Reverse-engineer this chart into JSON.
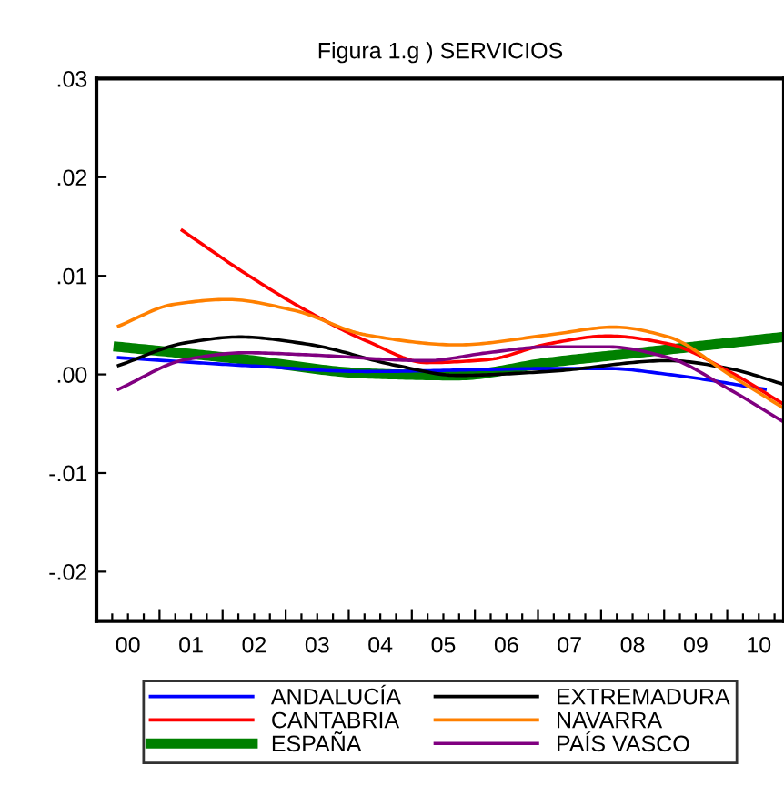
{
  "chart_data": {
    "type": "line",
    "title": "Figura 1.g ) SERVICIOS",
    "xlim": [
      0,
      10.9
    ],
    "xticks": [
      {
        "value": 0.5,
        "label": "00"
      },
      {
        "value": 1.5,
        "label": "01"
      },
      {
        "value": 2.5,
        "label": "02"
      },
      {
        "value": 3.5,
        "label": "03"
      },
      {
        "value": 4.5,
        "label": "04"
      },
      {
        "value": 5.5,
        "label": "05"
      },
      {
        "value": 6.5,
        "label": "06"
      },
      {
        "value": 7.5,
        "label": "07"
      },
      {
        "value": 8.5,
        "label": "08"
      },
      {
        "value": 9.5,
        "label": "09"
      },
      {
        "value": 10.5,
        "label": "10"
      }
    ],
    "ylim": [
      -0.025,
      0.03
    ],
    "yticks": [
      {
        "value": -0.02,
        "label": "-.02"
      },
      {
        "value": -0.01,
        "label": "-.01"
      },
      {
        "value": 0,
        "label": ".00"
      },
      {
        "value": 0.01,
        "label": ".01"
      },
      {
        "value": 0.02,
        "label": ".02"
      },
      {
        "value": 0.03,
        "label": ".03"
      }
    ],
    "grid": false,
    "legend": "bottom",
    "marker": "none",
    "line_style": "solid",
    "series": [
      {
        "name": "ANDALUCÍA",
        "color": "#0000ff",
        "x": [
          0.35,
          2.37,
          4.28,
          6.2,
          7.16,
          8.11,
          9.07,
          10.6
        ],
        "values": [
          0.0017,
          0.0009,
          0.0003,
          0.0005,
          0.0006,
          0.0006,
          0.0,
          -0.0015
        ]
      },
      {
        "name": "EXTREMADURA",
        "color": "#000000",
        "x": [
          0.35,
          1.41,
          2.27,
          3.32,
          4.76,
          5.72,
          7.16,
          9.07,
          10.03,
          10.89
        ],
        "values": [
          0.0009,
          0.0032,
          0.0038,
          0.0031,
          0.0009,
          -0.0001,
          0.0003,
          0.0014,
          0.0006,
          -0.001
        ]
      },
      {
        "name": "CANTABRIA",
        "color": "#ff0000",
        "x": [
          1.36,
          2.37,
          3.32,
          4.28,
          5.24,
          6.2,
          7.16,
          8.11,
          9.07,
          10.03,
          10.89
        ],
        "values": [
          0.0146,
          0.0102,
          0.0065,
          0.0034,
          0.0012,
          0.0015,
          0.0031,
          0.0039,
          0.0031,
          0.0003,
          -0.003
        ]
      },
      {
        "name": "NAVARRA",
        "color": "#ff8000",
        "x": [
          0.35,
          1.22,
          2.08,
          3.13,
          4.28,
          5.72,
          7.16,
          8.21,
          9.07,
          10.03,
          10.89
        ],
        "values": [
          0.0049,
          0.0071,
          0.0076,
          0.0065,
          0.004,
          0.003,
          0.004,
          0.0048,
          0.0038,
          0.0,
          -0.0034
        ]
      },
      {
        "name": "ESPAÑA",
        "color": "#008000",
        "x": [
          0.35,
          2.37,
          4.28,
          5.72,
          7.16,
          8.59,
          10.89
        ],
        "values": [
          0.0028,
          0.0015,
          0.0001,
          -0.0001,
          0.0012,
          0.0022,
          0.0038
        ]
      },
      {
        "name": "PAÍS VASCO",
        "color": "#800080",
        "x": [
          0.35,
          1.41,
          2.37,
          3.32,
          5.24,
          6.2,
          7.16,
          8.11,
          9.07,
          10.03,
          10.89
        ],
        "values": [
          -0.0015,
          0.0015,
          0.0022,
          0.002,
          0.0014,
          0.0022,
          0.0028,
          0.0028,
          0.0017,
          -0.0015,
          -0.0048
        ]
      }
    ]
  }
}
